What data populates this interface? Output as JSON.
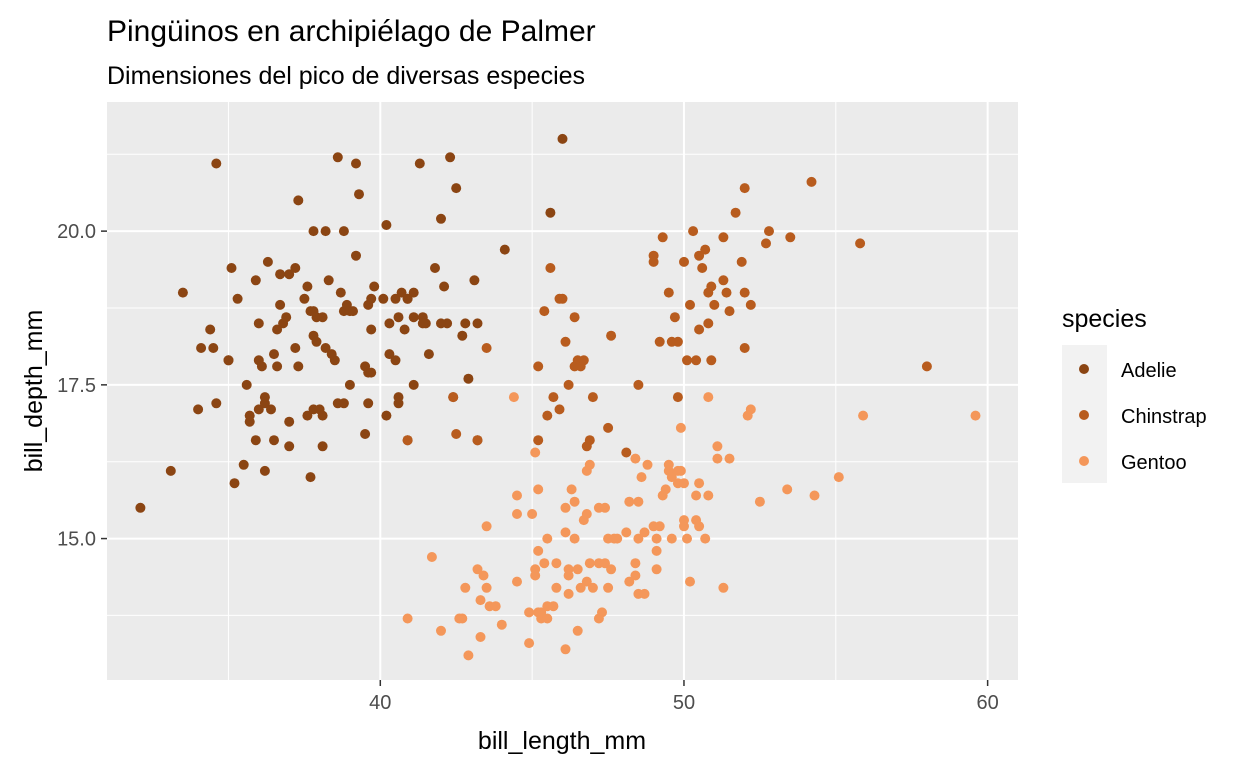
{
  "chart_data": {
    "type": "scatter",
    "title": "Pingüinos en archipiélago de Palmer",
    "subtitle": "Dimensiones del pico de diversas especies",
    "xlabel": "bill_length_mm",
    "ylabel": "bill_depth_mm",
    "xlim": [
      31.0,
      61.0
    ],
    "ylim": [
      12.7,
      22.1
    ],
    "xticks": [
      40,
      50,
      60
    ],
    "xtick_labels": [
      "40",
      "50",
      "60"
    ],
    "yticks": [
      15.0,
      17.5,
      20.0
    ],
    "ytick_labels": [
      "15.0",
      "17.5",
      "20.0"
    ],
    "grid": true,
    "legend": {
      "title": "species",
      "position": "right"
    },
    "series": [
      {
        "name": "Adelie",
        "color": "#8b4513",
        "points": [
          [
            32.1,
            15.5
          ],
          [
            33.1,
            16.1
          ],
          [
            33.5,
            19.0
          ],
          [
            34.0,
            17.1
          ],
          [
            34.1,
            18.1
          ],
          [
            34.4,
            18.4
          ],
          [
            34.5,
            18.1
          ],
          [
            34.6,
            21.1
          ],
          [
            34.6,
            17.2
          ],
          [
            35.0,
            17.9
          ],
          [
            35.1,
            19.4
          ],
          [
            35.2,
            15.9
          ],
          [
            35.3,
            18.9
          ],
          [
            35.5,
            16.2
          ],
          [
            35.6,
            17.5
          ],
          [
            35.7,
            16.9
          ],
          [
            35.7,
            17.0
          ],
          [
            35.9,
            19.2
          ],
          [
            35.9,
            16.6
          ],
          [
            36.0,
            17.9
          ],
          [
            36.0,
            18.5
          ],
          [
            36.0,
            17.1
          ],
          [
            36.1,
            17.8
          ],
          [
            36.2,
            16.1
          ],
          [
            36.2,
            17.2
          ],
          [
            36.3,
            19.5
          ],
          [
            36.4,
            17.1
          ],
          [
            36.5,
            18.0
          ],
          [
            36.6,
            18.4
          ],
          [
            36.6,
            17.8
          ],
          [
            36.7,
            18.8
          ],
          [
            36.7,
            19.3
          ],
          [
            36.8,
            18.5
          ],
          [
            36.9,
            18.6
          ],
          [
            37.0,
            16.9
          ],
          [
            37.0,
            16.5
          ],
          [
            37.2,
            18.1
          ],
          [
            37.2,
            19.4
          ],
          [
            37.3,
            20.5
          ],
          [
            37.3,
            17.8
          ],
          [
            37.5,
            18.9
          ],
          [
            37.6,
            19.1
          ],
          [
            37.6,
            17.0
          ],
          [
            37.7,
            18.7
          ],
          [
            37.7,
            16.0
          ],
          [
            37.8,
            20.0
          ],
          [
            37.8,
            18.3
          ],
          [
            37.8,
            17.1
          ],
          [
            37.9,
            18.6
          ],
          [
            38.1,
            18.6
          ],
          [
            38.1,
            17.0
          ],
          [
            38.1,
            16.5
          ],
          [
            38.2,
            18.1
          ],
          [
            38.2,
            20.0
          ],
          [
            38.3,
            19.2
          ],
          [
            38.5,
            17.9
          ],
          [
            38.6,
            21.2
          ],
          [
            38.6,
            17.2
          ],
          [
            38.7,
            19.0
          ],
          [
            38.8,
            18.7
          ],
          [
            38.8,
            17.2
          ],
          [
            38.9,
            18.8
          ],
          [
            39.0,
            18.7
          ],
          [
            39.1,
            18.7
          ],
          [
            39.2,
            19.6
          ],
          [
            39.2,
            21.1
          ],
          [
            39.3,
            20.6
          ],
          [
            39.5,
            16.7
          ],
          [
            39.5,
            17.8
          ],
          [
            39.6,
            18.8
          ],
          [
            39.6,
            17.2
          ],
          [
            39.7,
            18.4
          ],
          [
            39.7,
            18.9
          ],
          [
            39.8,
            19.1
          ],
          [
            40.1,
            18.9
          ],
          [
            40.2,
            17.0
          ],
          [
            40.3,
            18.0
          ],
          [
            40.3,
            18.5
          ],
          [
            40.5,
            17.9
          ],
          [
            40.5,
            18.9
          ],
          [
            40.6,
            18.6
          ],
          [
            40.6,
            17.2
          ],
          [
            40.7,
            19.0
          ],
          [
            40.8,
            18.4
          ],
          [
            40.9,
            16.6
          ],
          [
            40.9,
            18.9
          ],
          [
            41.1,
            18.6
          ],
          [
            41.1,
            17.5
          ],
          [
            41.3,
            21.1
          ],
          [
            41.4,
            18.6
          ],
          [
            41.5,
            18.5
          ],
          [
            41.6,
            18.0
          ],
          [
            41.8,
            19.4
          ],
          [
            42.0,
            20.2
          ],
          [
            42.1,
            19.1
          ],
          [
            42.2,
            18.5
          ],
          [
            42.3,
            21.2
          ],
          [
            42.5,
            20.7
          ],
          [
            42.7,
            18.3
          ],
          [
            42.8,
            18.5
          ],
          [
            42.9,
            17.6
          ],
          [
            43.1,
            19.2
          ],
          [
            43.2,
            18.5
          ],
          [
            44.1,
            19.7
          ],
          [
            45.6,
            20.3
          ],
          [
            46.0,
            21.5
          ],
          [
            42.4,
            17.3
          ],
          [
            41.1,
            19.0
          ],
          [
            40.2,
            20.1
          ],
          [
            39.0,
            17.5
          ],
          [
            38.8,
            20.0
          ],
          [
            38.0,
            17.1
          ],
          [
            37.9,
            18.2
          ],
          [
            37.0,
            19.3
          ],
          [
            36.5,
            16.6
          ],
          [
            36.2,
            17.3
          ],
          [
            35.0,
            17.9
          ],
          [
            39.6,
            17.7
          ],
          [
            40.6,
            17.3
          ],
          [
            41.4,
            18.5
          ],
          [
            43.2,
            16.6
          ],
          [
            42.0,
            18.5
          ],
          [
            40.9,
            18.9
          ],
          [
            39.7,
            17.7
          ],
          [
            38.4,
            18.0
          ],
          [
            37.8,
            18.7
          ]
        ]
      },
      {
        "name": "Chinstrap",
        "color": "#b85c1e",
        "points": [
          [
            40.9,
            16.6
          ],
          [
            42.4,
            17.3
          ],
          [
            42.5,
            16.7
          ],
          [
            43.2,
            16.6
          ],
          [
            43.5,
            18.1
          ],
          [
            45.2,
            17.8
          ],
          [
            45.2,
            16.6
          ],
          [
            45.4,
            18.7
          ],
          [
            45.5,
            17.0
          ],
          [
            45.6,
            19.4
          ],
          [
            45.7,
            17.3
          ],
          [
            45.9,
            17.1
          ],
          [
            46.0,
            18.9
          ],
          [
            46.1,
            18.2
          ],
          [
            46.2,
            17.5
          ],
          [
            46.4,
            17.8
          ],
          [
            46.4,
            18.6
          ],
          [
            46.5,
            17.9
          ],
          [
            46.6,
            17.8
          ],
          [
            46.7,
            17.9
          ],
          [
            46.8,
            16.5
          ],
          [
            46.9,
            16.6
          ],
          [
            47.0,
            17.3
          ],
          [
            47.5,
            16.8
          ],
          [
            47.6,
            18.3
          ],
          [
            48.1,
            16.4
          ],
          [
            48.5,
            17.5
          ],
          [
            49.0,
            19.5
          ],
          [
            49.0,
            19.6
          ],
          [
            49.2,
            18.2
          ],
          [
            49.3,
            19.9
          ],
          [
            49.5,
            19.0
          ],
          [
            49.6,
            18.2
          ],
          [
            49.7,
            18.6
          ],
          [
            49.8,
            17.3
          ],
          [
            50.0,
            19.5
          ],
          [
            50.1,
            17.9
          ],
          [
            50.2,
            18.8
          ],
          [
            50.3,
            20.0
          ],
          [
            50.5,
            19.6
          ],
          [
            50.5,
            18.4
          ],
          [
            50.6,
            19.4
          ],
          [
            50.7,
            19.7
          ],
          [
            50.8,
            19.0
          ],
          [
            50.8,
            18.5
          ],
          [
            50.9,
            17.9
          ],
          [
            50.9,
            19.1
          ],
          [
            51.0,
            18.8
          ],
          [
            51.3,
            19.2
          ],
          [
            51.3,
            19.9
          ],
          [
            51.4,
            19.0
          ],
          [
            51.5,
            18.7
          ],
          [
            51.7,
            20.3
          ],
          [
            51.9,
            19.5
          ],
          [
            52.0,
            18.1
          ],
          [
            52.0,
            19.0
          ],
          [
            52.0,
            20.7
          ],
          [
            52.2,
            18.8
          ],
          [
            52.7,
            19.8
          ],
          [
            52.8,
            20.0
          ],
          [
            53.5,
            19.9
          ],
          [
            54.2,
            20.8
          ],
          [
            55.8,
            19.8
          ],
          [
            58.0,
            17.8
          ],
          [
            45.9,
            18.9
          ],
          [
            49.8,
            18.2
          ],
          [
            50.4,
            17.9
          ]
        ]
      },
      {
        "name": "Gentoo",
        "color": "#f4975a",
        "points": [
          [
            40.9,
            13.7
          ],
          [
            41.7,
            14.7
          ],
          [
            42.0,
            13.5
          ],
          [
            42.6,
            13.7
          ],
          [
            42.7,
            13.7
          ],
          [
            42.8,
            14.2
          ],
          [
            42.9,
            13.1
          ],
          [
            43.2,
            14.5
          ],
          [
            43.3,
            14.0
          ],
          [
            43.3,
            13.4
          ],
          [
            43.4,
            14.4
          ],
          [
            43.5,
            14.2
          ],
          [
            43.5,
            15.2
          ],
          [
            43.6,
            13.9
          ],
          [
            43.8,
            13.9
          ],
          [
            44.0,
            13.6
          ],
          [
            44.4,
            17.3
          ],
          [
            44.5,
            14.3
          ],
          [
            44.5,
            15.7
          ],
          [
            44.9,
            13.8
          ],
          [
            44.9,
            13.3
          ],
          [
            45.0,
            15.4
          ],
          [
            45.1,
            14.5
          ],
          [
            45.1,
            14.4
          ],
          [
            45.2,
            13.8
          ],
          [
            45.2,
            14.8
          ],
          [
            45.2,
            15.8
          ],
          [
            45.3,
            13.7
          ],
          [
            45.3,
            13.8
          ],
          [
            45.4,
            14.6
          ],
          [
            45.5,
            13.7
          ],
          [
            45.5,
            15.0
          ],
          [
            45.5,
            13.9
          ],
          [
            45.7,
            13.9
          ],
          [
            45.8,
            14.6
          ],
          [
            45.8,
            14.2
          ],
          [
            46.1,
            13.2
          ],
          [
            46.1,
            15.1
          ],
          [
            46.2,
            14.5
          ],
          [
            46.2,
            14.1
          ],
          [
            46.2,
            14.4
          ],
          [
            46.3,
            15.8
          ],
          [
            46.4,
            15.0
          ],
          [
            46.4,
            15.6
          ],
          [
            46.5,
            13.5
          ],
          [
            46.5,
            14.5
          ],
          [
            46.6,
            14.2
          ],
          [
            46.7,
            15.3
          ],
          [
            46.8,
            14.3
          ],
          [
            46.8,
            16.1
          ],
          [
            46.8,
            15.4
          ],
          [
            46.9,
            14.6
          ],
          [
            47.0,
            14.2
          ],
          [
            47.2,
            13.7
          ],
          [
            47.2,
            14.6
          ],
          [
            47.2,
            15.5
          ],
          [
            47.3,
            13.8
          ],
          [
            47.4,
            14.6
          ],
          [
            47.5,
            14.2
          ],
          [
            47.5,
            15.0
          ],
          [
            47.6,
            14.5
          ],
          [
            47.7,
            15.0
          ],
          [
            47.8,
            15.0
          ],
          [
            48.1,
            15.1
          ],
          [
            48.2,
            14.3
          ],
          [
            48.2,
            15.6
          ],
          [
            48.4,
            14.6
          ],
          [
            48.4,
            14.4
          ],
          [
            48.4,
            16.3
          ],
          [
            48.5,
            14.1
          ],
          [
            48.5,
            15.0
          ],
          [
            48.6,
            16.0
          ],
          [
            48.7,
            14.1
          ],
          [
            48.7,
            15.1
          ],
          [
            48.8,
            16.2
          ],
          [
            49.0,
            15.2
          ],
          [
            49.1,
            14.5
          ],
          [
            49.1,
            14.8
          ],
          [
            49.1,
            15.0
          ],
          [
            49.2,
            15.2
          ],
          [
            49.3,
            15.7
          ],
          [
            49.4,
            15.8
          ],
          [
            49.5,
            16.1
          ],
          [
            49.5,
            16.2
          ],
          [
            49.6,
            15.0
          ],
          [
            49.6,
            16.0
          ],
          [
            49.8,
            15.9
          ],
          [
            49.8,
            16.1
          ],
          [
            49.9,
            16.1
          ],
          [
            50.0,
            15.2
          ],
          [
            50.0,
            15.3
          ],
          [
            50.0,
            15.9
          ],
          [
            50.1,
            15.0
          ],
          [
            50.2,
            14.3
          ],
          [
            50.4,
            15.3
          ],
          [
            50.4,
            15.7
          ],
          [
            50.5,
            15.2
          ],
          [
            50.5,
            15.9
          ],
          [
            50.7,
            15.0
          ],
          [
            50.8,
            15.7
          ],
          [
            50.8,
            17.3
          ],
          [
            51.1,
            16.3
          ],
          [
            51.1,
            16.5
          ],
          [
            51.3,
            14.2
          ],
          [
            51.5,
            16.3
          ],
          [
            52.1,
            17.0
          ],
          [
            52.2,
            17.1
          ],
          [
            52.5,
            15.6
          ],
          [
            53.4,
            15.8
          ],
          [
            54.3,
            15.7
          ],
          [
            55.1,
            16.0
          ],
          [
            55.9,
            17.0
          ],
          [
            59.6,
            17.0
          ],
          [
            49.9,
            16.8
          ],
          [
            46.9,
            16.2
          ],
          [
            45.1,
            16.4
          ],
          [
            47.4,
            15.5
          ],
          [
            48.5,
            15.6
          ],
          [
            46.1,
            15.5
          ],
          [
            44.5,
            15.4
          ]
        ]
      }
    ]
  }
}
